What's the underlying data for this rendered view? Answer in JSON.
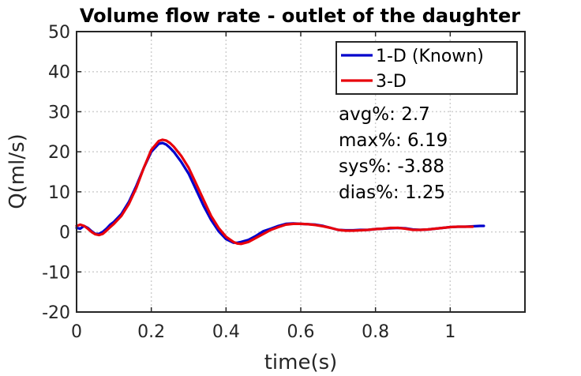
{
  "chart_data": {
    "type": "line",
    "title": "Volume flow rate - outlet of the daughter",
    "xlabel": "time(s)",
    "ylabel": "Q(ml/s)",
    "xlim": [
      0,
      1.2
    ],
    "ylim": [
      -20,
      50
    ],
    "xticks": [
      0,
      0.2,
      0.4,
      0.6,
      0.8,
      1
    ],
    "xtick_labels": [
      "0",
      "0.2",
      "0.4",
      "0.6",
      "0.8",
      "1"
    ],
    "yticks": [
      -20,
      -10,
      0,
      10,
      20,
      30,
      40,
      50
    ],
    "ytick_labels": [
      "-20",
      "-10",
      "0",
      "10",
      "20",
      "30",
      "40",
      "50"
    ],
    "grid": true,
    "legend_position": "top-right",
    "series": [
      {
        "name": "1-D (Known)",
        "color": "#0000cc",
        "x": [
          0,
          0.01,
          0.02,
          0.03,
          0.04,
          0.05,
          0.06,
          0.07,
          0.08,
          0.09,
          0.1,
          0.12,
          0.14,
          0.16,
          0.18,
          0.2,
          0.22,
          0.23,
          0.24,
          0.25,
          0.26,
          0.28,
          0.3,
          0.32,
          0.34,
          0.36,
          0.38,
          0.4,
          0.42,
          0.43,
          0.44,
          0.46,
          0.48,
          0.5,
          0.52,
          0.54,
          0.56,
          0.58,
          0.6,
          0.62,
          0.64,
          0.66,
          0.68,
          0.7,
          0.72,
          0.74,
          0.76,
          0.78,
          0.8,
          0.82,
          0.84,
          0.86,
          0.88,
          0.9,
          0.92,
          0.94,
          0.96,
          0.98,
          1.0,
          1.02,
          1.04,
          1.06,
          1.08,
          1.09
        ],
        "y": [
          1.0,
          0.8,
          1.5,
          1.0,
          0.2,
          -0.5,
          -0.5,
          0.0,
          0.8,
          1.8,
          2.5,
          4.5,
          7.5,
          11.5,
          16.0,
          20.0,
          22.0,
          22.2,
          21.8,
          21.0,
          20.0,
          17.5,
          14.5,
          10.5,
          6.5,
          3.0,
          0.2,
          -1.8,
          -2.7,
          -2.7,
          -2.5,
          -2.0,
          -1.0,
          0.2,
          0.8,
          1.5,
          2.0,
          2.1,
          2.0,
          1.9,
          1.8,
          1.5,
          1.0,
          0.5,
          0.4,
          0.4,
          0.5,
          0.5,
          0.7,
          0.8,
          0.9,
          1.0,
          0.9,
          0.6,
          0.5,
          0.6,
          0.8,
          1.0,
          1.2,
          1.3,
          1.3,
          1.4,
          1.5,
          1.5
        ]
      },
      {
        "name": "3-D",
        "color": "#e8000b",
        "x": [
          0,
          0.01,
          0.02,
          0.03,
          0.04,
          0.05,
          0.06,
          0.07,
          0.08,
          0.09,
          0.1,
          0.12,
          0.14,
          0.16,
          0.18,
          0.2,
          0.22,
          0.23,
          0.24,
          0.25,
          0.26,
          0.28,
          0.3,
          0.32,
          0.34,
          0.36,
          0.38,
          0.4,
          0.42,
          0.43,
          0.44,
          0.46,
          0.48,
          0.5,
          0.52,
          0.54,
          0.56,
          0.58,
          0.6,
          0.62,
          0.64,
          0.66,
          0.68,
          0.7,
          0.72,
          0.74,
          0.76,
          0.78,
          0.8,
          0.82,
          0.84,
          0.86,
          0.88,
          0.9,
          0.92,
          0.94,
          0.96,
          0.98,
          1.0,
          1.02,
          1.04,
          1.06
        ],
        "y": [
          1.5,
          1.8,
          1.5,
          0.8,
          0.0,
          -0.6,
          -0.8,
          -0.5,
          0.3,
          1.2,
          2.0,
          4.0,
          7.0,
          11.0,
          16.0,
          20.5,
          22.7,
          23.0,
          22.8,
          22.2,
          21.3,
          19.0,
          16.0,
          12.0,
          8.0,
          4.0,
          1.0,
          -1.2,
          -2.5,
          -2.9,
          -3.0,
          -2.5,
          -1.5,
          -0.5,
          0.5,
          1.2,
          1.8,
          2.0,
          2.0,
          1.9,
          1.7,
          1.4,
          1.0,
          0.5,
          0.3,
          0.3,
          0.4,
          0.5,
          0.7,
          0.8,
          1.0,
          1.0,
          0.8,
          0.5,
          0.5,
          0.6,
          0.8,
          1.0,
          1.2,
          1.3,
          1.3,
          1.3
        ]
      }
    ],
    "annotations": [
      "avg%: 2.7",
      "max%: 6.19",
      "sys%: -3.88",
      "dias%: 1.25"
    ]
  }
}
